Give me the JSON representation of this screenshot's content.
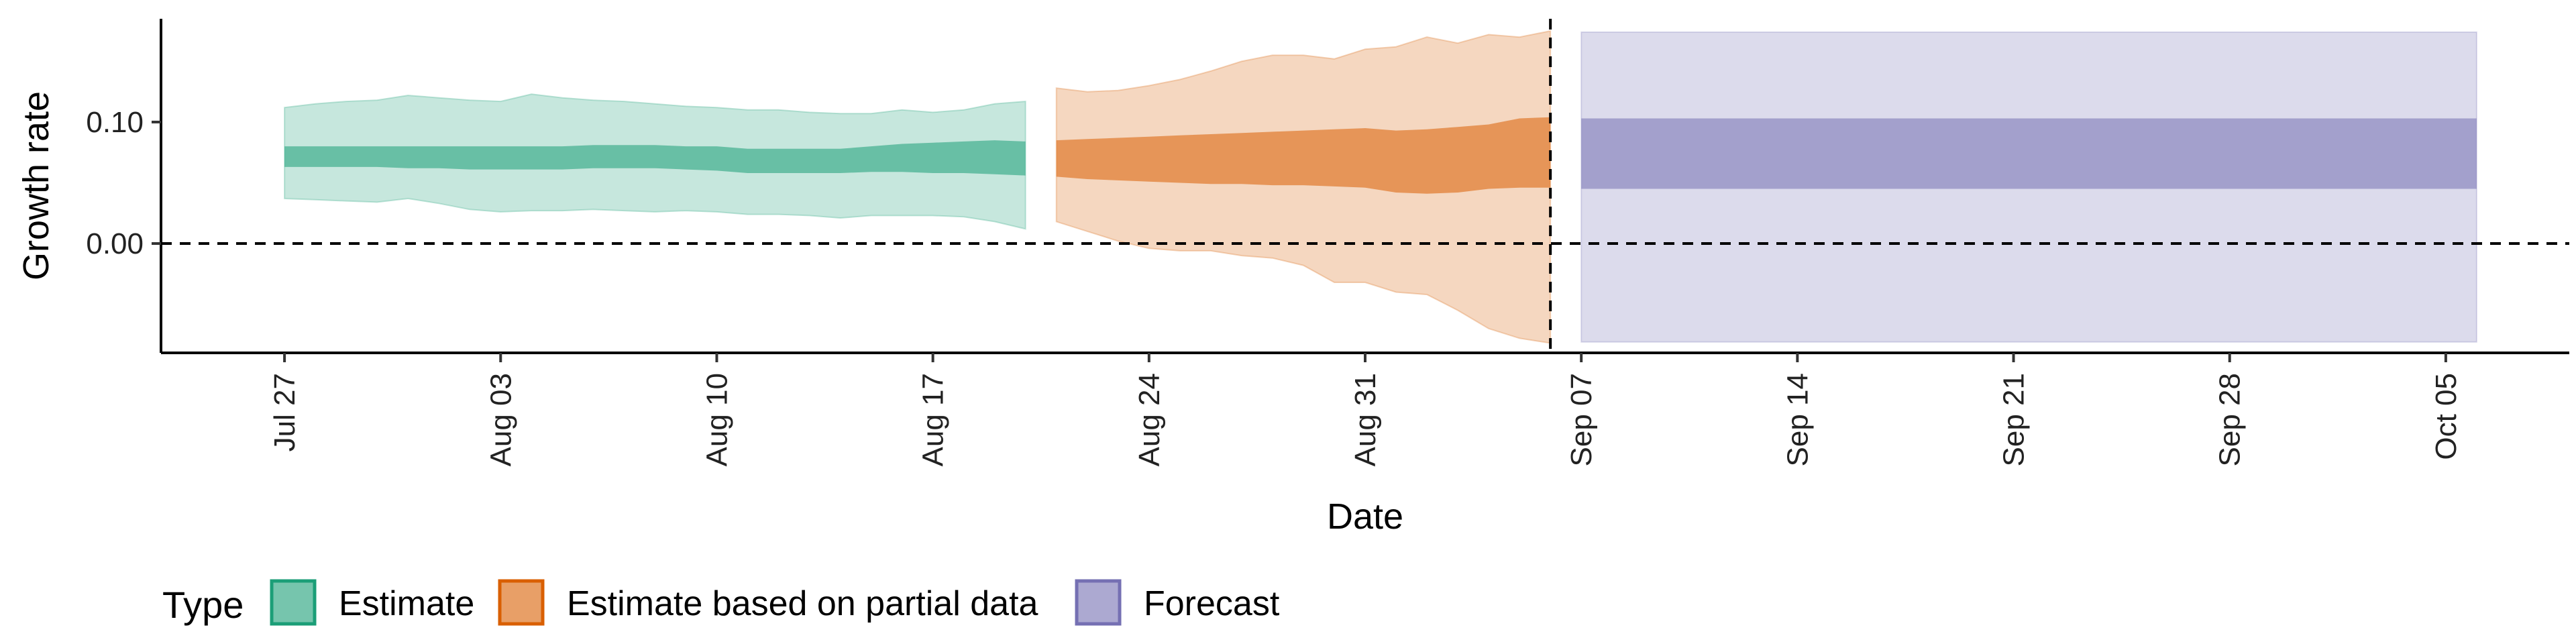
{
  "chart_data": {
    "type": "area",
    "xlabel": "Date",
    "ylabel": "Growth rate",
    "x_ticks": [
      "Jul 27",
      "Aug 03",
      "Aug 10",
      "Aug 17",
      "Aug 24",
      "Aug 31",
      "Sep 07",
      "Sep 14",
      "Sep 21",
      "Sep 28",
      "Oct 05"
    ],
    "x_tick_dates": [
      "2020-07-27",
      "2020-08-03",
      "2020-08-10",
      "2020-08-17",
      "2020-08-24",
      "2020-08-31",
      "2020-09-07",
      "2020-09-14",
      "2020-09-21",
      "2020-09-28",
      "2020-10-05"
    ],
    "xlim": [
      "2020-07-23",
      "2020-10-09"
    ],
    "ylim": [
      -0.09,
      0.185
    ],
    "y_ticks": [
      0.0,
      0.1
    ],
    "y_tick_labels": [
      "0.00",
      "0.10"
    ],
    "hline": 0.0,
    "vline": "2020-09-06",
    "legend_title": "Type",
    "legend_position": "bottom-left",
    "colors": {
      "Estimate": "#1b9e77",
      "Estimate based on partial data": "#d95f02",
      "Forecast": "#7570b3"
    },
    "series": [
      {
        "name": "Estimate",
        "x": [
          "2020-07-27",
          "2020-07-28",
          "2020-07-29",
          "2020-07-30",
          "2020-07-31",
          "2020-08-01",
          "2020-08-02",
          "2020-08-03",
          "2020-08-04",
          "2020-08-05",
          "2020-08-06",
          "2020-08-07",
          "2020-08-08",
          "2020-08-09",
          "2020-08-10",
          "2020-08-11",
          "2020-08-12",
          "2020-08-13",
          "2020-08-14",
          "2020-08-15",
          "2020-08-16",
          "2020-08-17",
          "2020-08-18",
          "2020-08-19",
          "2020-08-20"
        ],
        "outer_upper": [
          0.112,
          0.115,
          0.117,
          0.118,
          0.122,
          0.12,
          0.118,
          0.117,
          0.123,
          0.12,
          0.118,
          0.117,
          0.115,
          0.113,
          0.112,
          0.11,
          0.11,
          0.108,
          0.107,
          0.107,
          0.11,
          0.108,
          0.11,
          0.115,
          0.117
        ],
        "inner_upper": [
          0.08,
          0.08,
          0.08,
          0.08,
          0.08,
          0.08,
          0.08,
          0.08,
          0.08,
          0.08,
          0.081,
          0.081,
          0.081,
          0.08,
          0.08,
          0.078,
          0.078,
          0.078,
          0.078,
          0.08,
          0.082,
          0.083,
          0.084,
          0.085,
          0.084
        ],
        "inner_lower": [
          0.063,
          0.063,
          0.063,
          0.063,
          0.062,
          0.062,
          0.061,
          0.061,
          0.061,
          0.061,
          0.062,
          0.062,
          0.062,
          0.061,
          0.06,
          0.058,
          0.058,
          0.058,
          0.058,
          0.059,
          0.059,
          0.058,
          0.058,
          0.057,
          0.056
        ],
        "outer_lower": [
          0.037,
          0.036,
          0.035,
          0.034,
          0.037,
          0.033,
          0.028,
          0.026,
          0.027,
          0.027,
          0.028,
          0.027,
          0.026,
          0.027,
          0.026,
          0.024,
          0.024,
          0.023,
          0.021,
          0.023,
          0.023,
          0.023,
          0.022,
          0.018,
          0.012
        ]
      },
      {
        "name": "Estimate based on partial data",
        "x": [
          "2020-08-21",
          "2020-08-22",
          "2020-08-23",
          "2020-08-24",
          "2020-08-25",
          "2020-08-26",
          "2020-08-27",
          "2020-08-28",
          "2020-08-29",
          "2020-08-30",
          "2020-08-31",
          "2020-09-01",
          "2020-09-02",
          "2020-09-03",
          "2020-09-04",
          "2020-09-05",
          "2020-09-06"
        ],
        "outer_upper": [
          0.128,
          0.125,
          0.126,
          0.13,
          0.135,
          0.142,
          0.15,
          0.155,
          0.155,
          0.152,
          0.16,
          0.162,
          0.17,
          0.165,
          0.172,
          0.17,
          0.175
        ],
        "inner_upper": [
          0.085,
          0.086,
          0.087,
          0.088,
          0.089,
          0.09,
          0.091,
          0.092,
          0.093,
          0.094,
          0.095,
          0.093,
          0.094,
          0.096,
          0.098,
          0.103,
          0.104
        ],
        "inner_lower": [
          0.055,
          0.053,
          0.052,
          0.051,
          0.05,
          0.049,
          0.049,
          0.048,
          0.048,
          0.047,
          0.046,
          0.042,
          0.041,
          0.042,
          0.045,
          0.046,
          0.046
        ],
        "outer_lower": [
          0.018,
          0.01,
          0.002,
          -0.004,
          -0.006,
          -0.006,
          -0.01,
          -0.012,
          -0.018,
          -0.032,
          -0.032,
          -0.04,
          -0.042,
          -0.055,
          -0.07,
          -0.078,
          -0.082
        ]
      },
      {
        "name": "Forecast",
        "x": [
          "2020-09-07",
          "2020-10-06"
        ],
        "outer_upper": [
          0.174,
          0.174
        ],
        "inner_upper": [
          0.103,
          0.103
        ],
        "inner_lower": [
          0.045,
          0.045
        ],
        "outer_lower": [
          -0.081,
          -0.081
        ]
      }
    ]
  }
}
